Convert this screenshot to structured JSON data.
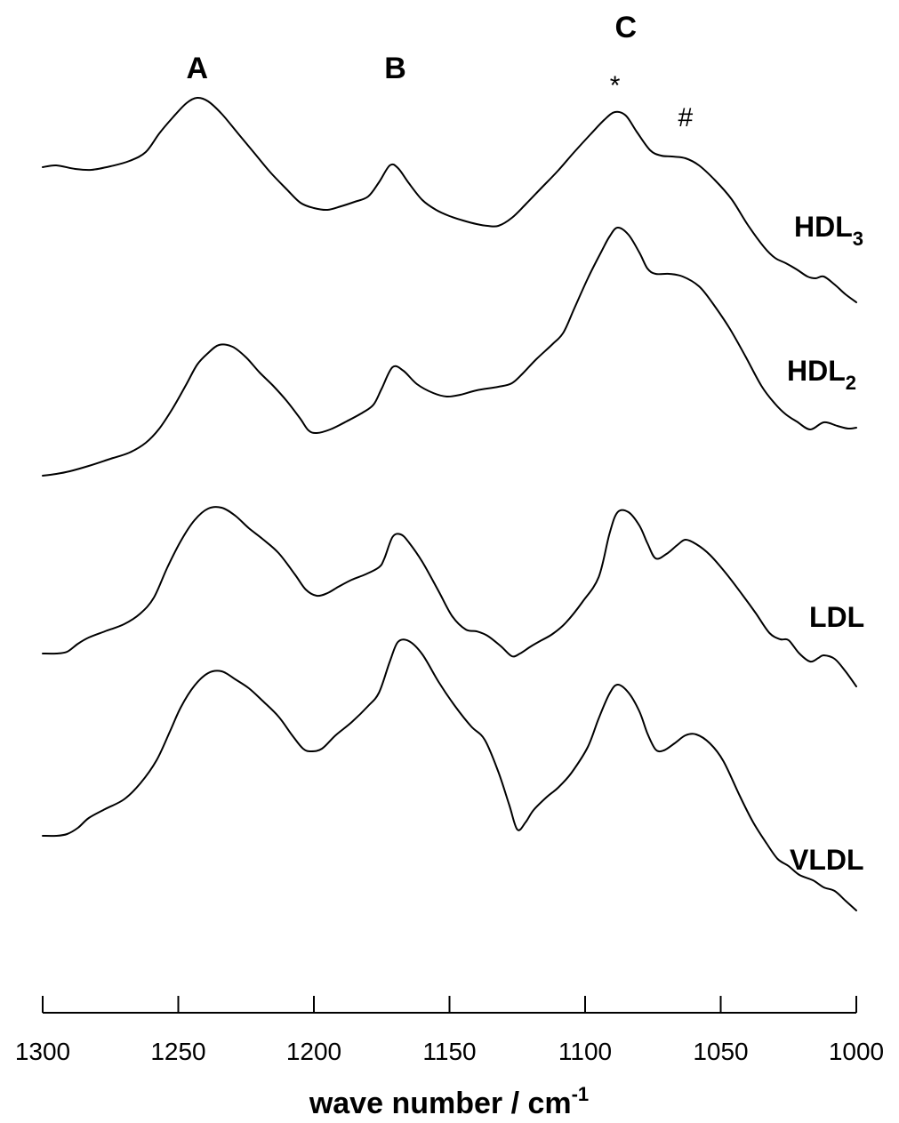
{
  "chart_data": {
    "type": "line",
    "xlabel_main": "wave number / cm",
    "xlabel_sup": "-1",
    "xlim": [
      1300,
      1000
    ],
    "x_ticks": [
      1300,
      1250,
      1200,
      1150,
      1100,
      1050,
      1000
    ],
    "band_labels": [
      {
        "text": "A",
        "x": 1243
      },
      {
        "text": "B",
        "x": 1170
      },
      {
        "text": "C",
        "x": 1085
      }
    ],
    "marks": [
      {
        "text": "*",
        "x": 1089
      },
      {
        "text": "#",
        "x": 1063
      }
    ],
    "series": [
      {
        "name": "HDL",
        "subscript": "3",
        "points": [
          [
            1300,
            188
          ],
          [
            1295,
            186
          ],
          [
            1288,
            190
          ],
          [
            1282,
            191
          ],
          [
            1275,
            187
          ],
          [
            1268,
            181
          ],
          [
            1262,
            171
          ],
          [
            1257,
            150
          ],
          [
            1252,
            132
          ],
          [
            1247,
            116
          ],
          [
            1243,
            110
          ],
          [
            1239,
            114
          ],
          [
            1234,
            128
          ],
          [
            1228,
            150
          ],
          [
            1222,
            172
          ],
          [
            1216,
            194
          ],
          [
            1210,
            213
          ],
          [
            1205,
            228
          ],
          [
            1200,
            234
          ],
          [
            1195,
            236
          ],
          [
            1190,
            232
          ],
          [
            1185,
            227
          ],
          [
            1180,
            221
          ],
          [
            1176,
            205
          ],
          [
            1172,
            186
          ],
          [
            1169,
            189
          ],
          [
            1165,
            206
          ],
          [
            1160,
            225
          ],
          [
            1155,
            236
          ],
          [
            1150,
            243
          ],
          [
            1145,
            248
          ],
          [
            1140,
            252
          ],
          [
            1136,
            254
          ],
          [
            1132,
            254
          ],
          [
            1127,
            245
          ],
          [
            1122,
            230
          ],
          [
            1116,
            211
          ],
          [
            1110,
            192
          ],
          [
            1104,
            171
          ],
          [
            1098,
            151
          ],
          [
            1093,
            135
          ],
          [
            1089,
            126
          ],
          [
            1085,
            130
          ],
          [
            1081,
            148
          ],
          [
            1076,
            169
          ],
          [
            1072,
            175
          ],
          [
            1068,
            176
          ],
          [
            1063,
            178
          ],
          [
            1058,
            186
          ],
          [
            1052,
            203
          ],
          [
            1046,
            224
          ],
          [
            1040,
            253
          ],
          [
            1034,
            278
          ],
          [
            1030,
            290
          ],
          [
            1026,
            296
          ],
          [
            1022,
            303
          ],
          [
            1018,
            311
          ],
          [
            1015,
            313
          ],
          [
            1012,
            311
          ],
          [
            1008,
            320
          ],
          [
            1004,
            331
          ],
          [
            1000,
            340
          ]
        ]
      },
      {
        "name": "HDL",
        "subscript": "2",
        "points": [
          [
            1300,
            535
          ],
          [
            1295,
            533
          ],
          [
            1290,
            530
          ],
          [
            1283,
            524
          ],
          [
            1275,
            516
          ],
          [
            1268,
            509
          ],
          [
            1262,
            498
          ],
          [
            1257,
            482
          ],
          [
            1252,
            459
          ],
          [
            1247,
            432
          ],
          [
            1243,
            410
          ],
          [
            1239,
            397
          ],
          [
            1235,
            388
          ],
          [
            1230,
            390
          ],
          [
            1225,
            402
          ],
          [
            1220,
            419
          ],
          [
            1215,
            434
          ],
          [
            1210,
            451
          ],
          [
            1205,
            471
          ],
          [
            1202,
            484
          ],
          [
            1199,
            487
          ],
          [
            1194,
            483
          ],
          [
            1188,
            474
          ],
          [
            1182,
            464
          ],
          [
            1178,
            455
          ],
          [
            1175,
            437
          ],
          [
            1171,
            413
          ],
          [
            1167,
            417
          ],
          [
            1162,
            432
          ],
          [
            1156,
            442
          ],
          [
            1151,
            446
          ],
          [
            1146,
            444
          ],
          [
            1140,
            439
          ],
          [
            1132,
            435
          ],
          [
            1127,
            431
          ],
          [
            1123,
            420
          ],
          [
            1118,
            404
          ],
          [
            1112,
            387
          ],
          [
            1108,
            374
          ],
          [
            1104,
            347
          ],
          [
            1099,
            313
          ],
          [
            1094,
            283
          ],
          [
            1091,
            266
          ],
          [
            1088,
            256
          ],
          [
            1084,
            264
          ],
          [
            1080,
            284
          ],
          [
            1077,
            302
          ],
          [
            1074,
            308
          ],
          [
            1069,
            308
          ],
          [
            1064,
            311
          ],
          [
            1058,
            322
          ],
          [
            1053,
            341
          ],
          [
            1047,
            368
          ],
          [
            1041,
            400
          ],
          [
            1035,
            434
          ],
          [
            1030,
            454
          ],
          [
            1026,
            466
          ],
          [
            1022,
            474
          ],
          [
            1017,
            483
          ],
          [
            1012,
            475
          ],
          [
            1007,
            479
          ],
          [
            1003,
            482
          ],
          [
            1000,
            481
          ]
        ]
      },
      {
        "name": "LDL",
        "points": [
          [
            1300,
            735
          ],
          [
            1295,
            735
          ],
          [
            1291,
            733
          ],
          [
            1287,
            724
          ],
          [
            1283,
            717
          ],
          [
            1277,
            710
          ],
          [
            1270,
            702
          ],
          [
            1264,
            690
          ],
          [
            1259,
            672
          ],
          [
            1254,
            638
          ],
          [
            1249,
            608
          ],
          [
            1244,
            585
          ],
          [
            1239,
            572
          ],
          [
            1234,
            571
          ],
          [
            1229,
            580
          ],
          [
            1224,
            594
          ],
          [
            1219,
            606
          ],
          [
            1213,
            622
          ],
          [
            1207,
            646
          ],
          [
            1203,
            663
          ],
          [
            1199,
            670
          ],
          [
            1195,
            667
          ],
          [
            1191,
            660
          ],
          [
            1186,
            652
          ],
          [
            1181,
            646
          ],
          [
            1176,
            638
          ],
          [
            1174,
            628
          ],
          [
            1171,
            604
          ],
          [
            1168,
            601
          ],
          [
            1165,
            610
          ],
          [
            1160,
            632
          ],
          [
            1154,
            665
          ],
          [
            1149,
            693
          ],
          [
            1144,
            708
          ],
          [
            1140,
            710
          ],
          [
            1136,
            715
          ],
          [
            1131,
            727
          ],
          [
            1127,
            738
          ],
          [
            1124,
            735
          ],
          [
            1120,
            727
          ],
          [
            1116,
            720
          ],
          [
            1112,
            713
          ],
          [
            1107,
            700
          ],
          [
            1101,
            677
          ],
          [
            1095,
            649
          ],
          [
            1091,
            600
          ],
          [
            1088,
            576
          ],
          [
            1084,
            576
          ],
          [
            1080,
            591
          ],
          [
            1077,
            611
          ],
          [
            1074,
            628
          ],
          [
            1070,
            623
          ],
          [
            1066,
            613
          ],
          [
            1063,
            607
          ],
          [
            1059,
            612
          ],
          [
            1054,
            624
          ],
          [
            1048,
            645
          ],
          [
            1042,
            669
          ],
          [
            1037,
            690
          ],
          [
            1032,
            712
          ],
          [
            1028,
            719
          ],
          [
            1025,
            720
          ],
          [
            1021,
            735
          ],
          [
            1017,
            744
          ],
          [
            1014,
            740
          ],
          [
            1012,
            737
          ],
          [
            1008,
            741
          ],
          [
            1004,
            755
          ],
          [
            1000,
            772
          ]
        ]
      },
      {
        "name": "VLDL",
        "points": [
          [
            1300,
            940
          ],
          [
            1295,
            940
          ],
          [
            1291,
            938
          ],
          [
            1287,
            931
          ],
          [
            1283,
            920
          ],
          [
            1277,
            910
          ],
          [
            1270,
            899
          ],
          [
            1264,
            881
          ],
          [
            1258,
            855
          ],
          [
            1253,
            822
          ],
          [
            1249,
            795
          ],
          [
            1244,
            771
          ],
          [
            1239,
            757
          ],
          [
            1234,
            755
          ],
          [
            1229,
            764
          ],
          [
            1224,
            774
          ],
          [
            1219,
            788
          ],
          [
            1213,
            806
          ],
          [
            1208,
            827
          ],
          [
            1204,
            842
          ],
          [
            1201,
            845
          ],
          [
            1197,
            842
          ],
          [
            1192,
            827
          ],
          [
            1186,
            812
          ],
          [
            1180,
            794
          ],
          [
            1176,
            779
          ],
          [
            1172,
            744
          ],
          [
            1169,
            722
          ],
          [
            1165,
            721
          ],
          [
            1160,
            736
          ],
          [
            1154,
            767
          ],
          [
            1148,
            794
          ],
          [
            1142,
            817
          ],
          [
            1137,
            832
          ],
          [
            1132,
            868
          ],
          [
            1128,
            905
          ],
          [
            1125,
            933
          ],
          [
            1122,
            925
          ],
          [
            1119,
            911
          ],
          [
            1114,
            896
          ],
          [
            1110,
            886
          ],
          [
            1105,
            869
          ],
          [
            1099,
            840
          ],
          [
            1095,
            808
          ],
          [
            1091,
            780
          ],
          [
            1088,
            770
          ],
          [
            1084,
            779
          ],
          [
            1080,
            800
          ],
          [
            1077,
            825
          ],
          [
            1074,
            843
          ],
          [
            1071,
            844
          ],
          [
            1067,
            836
          ],
          [
            1063,
            827
          ],
          [
            1059,
            826
          ],
          [
            1054,
            836
          ],
          [
            1049,
            856
          ],
          [
            1043,
            895
          ],
          [
            1038,
            925
          ],
          [
            1033,
            949
          ],
          [
            1029,
            966
          ],
          [
            1025,
            974
          ],
          [
            1021,
            984
          ],
          [
            1016,
            990
          ],
          [
            1012,
            998
          ],
          [
            1008,
            1002
          ],
          [
            1004,
            1013
          ],
          [
            1000,
            1024
          ]
        ]
      }
    ]
  }
}
